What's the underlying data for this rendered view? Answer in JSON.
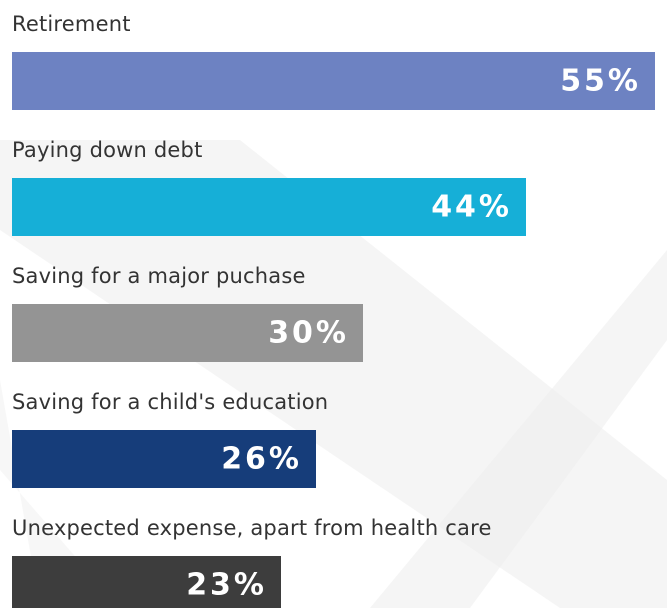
{
  "chart_data": {
    "type": "bar",
    "orientation": "horizontal",
    "categories": [
      "Retirement",
      "Paying down debt",
      "Saving for a major puchase",
      "Saving for a child's education",
      "Unexpected expense, apart from health care"
    ],
    "values": [
      55,
      44,
      30,
      26,
      23
    ],
    "value_labels": [
      "55%",
      "44%",
      "30%",
      "26%",
      "23%"
    ],
    "colors": [
      "#6d82c2",
      "#16afd7",
      "#949494",
      "#163d7a",
      "#3d3d3d"
    ],
    "value_label_colors": [
      "#ffffff",
      "#ffffff",
      "#ffffff",
      "#ffffff",
      "#ffffff"
    ],
    "xlim": [
      0,
      55
    ],
    "grid": false,
    "legend": "none"
  }
}
